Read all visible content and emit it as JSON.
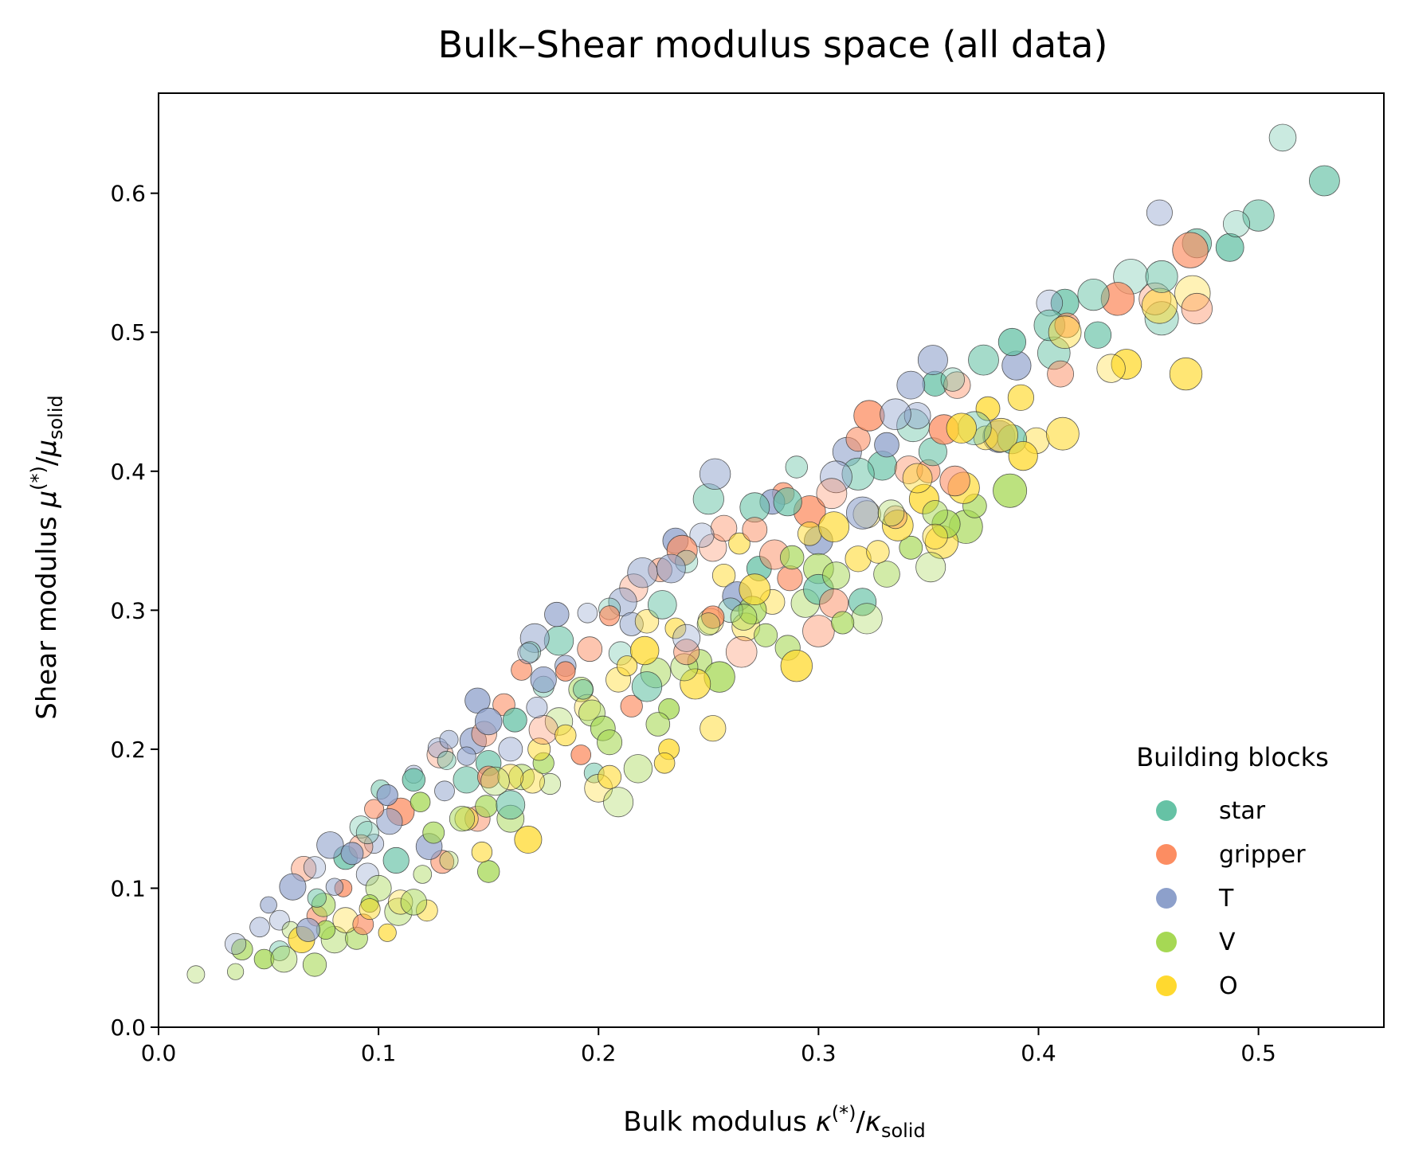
{
  "chart_data": {
    "type": "scatter",
    "title": "Bulk–Shear modulus space (all data)",
    "xlabel": {
      "prefix": "Bulk modulus ",
      "var": "κ",
      "sup": "(*)",
      "den": "κ",
      "sub": "solid"
    },
    "ylabel": {
      "prefix": "Shear modulus ",
      "var": "μ",
      "sup": "(*)",
      "den": "μ",
      "sub": "solid"
    },
    "xlim": [
      0.0,
      0.557
    ],
    "ylim": [
      0.0,
      0.672
    ],
    "xticks": [
      "0.0",
      "0.1",
      "0.2",
      "0.3",
      "0.4",
      "0.5"
    ],
    "yticks": [
      "0.0",
      "0.1",
      "0.2",
      "0.3",
      "0.4",
      "0.5",
      "0.6"
    ],
    "grid": false,
    "legend": {
      "title": "Building blocks",
      "position": "lower-right",
      "entries": [
        "star",
        "gripper",
        "T",
        "V",
        "O"
      ]
    },
    "series": [
      {
        "name": "star",
        "color": "#66c2a5",
        "points": [
          [
            0.511,
            0.64
          ],
          [
            0.53,
            0.609
          ],
          [
            0.5,
            0.584
          ],
          [
            0.49,
            0.578
          ],
          [
            0.487,
            0.561
          ],
          [
            0.472,
            0.564
          ],
          [
            0.456,
            0.54
          ],
          [
            0.456,
            0.51
          ],
          [
            0.442,
            0.54
          ],
          [
            0.427,
            0.498
          ],
          [
            0.425,
            0.527
          ],
          [
            0.412,
            0.521
          ],
          [
            0.405,
            0.505
          ],
          [
            0.407,
            0.485
          ],
          [
            0.388,
            0.493
          ],
          [
            0.388,
            0.423
          ],
          [
            0.375,
            0.48
          ],
          [
            0.371,
            0.431
          ],
          [
            0.361,
            0.466
          ],
          [
            0.353,
            0.463
          ],
          [
            0.352,
            0.414
          ],
          [
            0.343,
            0.433
          ],
          [
            0.329,
            0.404
          ],
          [
            0.318,
            0.398
          ],
          [
            0.29,
            0.403
          ],
          [
            0.286,
            0.378
          ],
          [
            0.271,
            0.374
          ],
          [
            0.25,
            0.38
          ],
          [
            0.24,
            0.335
          ],
          [
            0.273,
            0.33
          ],
          [
            0.32,
            0.306
          ],
          [
            0.229,
            0.304
          ],
          [
            0.205,
            0.301
          ],
          [
            0.182,
            0.278
          ],
          [
            0.169,
            0.27
          ],
          [
            0.21,
            0.269
          ],
          [
            0.222,
            0.245
          ],
          [
            0.193,
            0.243
          ],
          [
            0.175,
            0.245
          ],
          [
            0.162,
            0.221
          ],
          [
            0.15,
            0.19
          ],
          [
            0.14,
            0.178
          ],
          [
            0.131,
            0.192
          ],
          [
            0.116,
            0.178
          ],
          [
            0.101,
            0.171
          ],
          [
            0.095,
            0.14
          ],
          [
            0.085,
            0.122
          ],
          [
            0.072,
            0.093
          ],
          [
            0.055,
            0.055
          ],
          [
            0.092,
            0.144
          ],
          [
            0.108,
            0.12
          ],
          [
            0.16,
            0.16
          ],
          [
            0.198,
            0.183
          ],
          [
            0.26,
            0.3
          ],
          [
            0.3,
            0.315
          ]
        ]
      },
      {
        "name": "gripper",
        "color": "#fc8d62",
        "points": [
          [
            0.469,
            0.559
          ],
          [
            0.472,
            0.517
          ],
          [
            0.453,
            0.524
          ],
          [
            0.436,
            0.524
          ],
          [
            0.413,
            0.505
          ],
          [
            0.41,
            0.47
          ],
          [
            0.363,
            0.462
          ],
          [
            0.357,
            0.43
          ],
          [
            0.35,
            0.4
          ],
          [
            0.341,
            0.401
          ],
          [
            0.323,
            0.44
          ],
          [
            0.318,
            0.423
          ],
          [
            0.306,
            0.384
          ],
          [
            0.296,
            0.371
          ],
          [
            0.284,
            0.384
          ],
          [
            0.271,
            0.358
          ],
          [
            0.257,
            0.359
          ],
          [
            0.252,
            0.345
          ],
          [
            0.238,
            0.343
          ],
          [
            0.228,
            0.329
          ],
          [
            0.216,
            0.316
          ],
          [
            0.205,
            0.296
          ],
          [
            0.196,
            0.272
          ],
          [
            0.185,
            0.256
          ],
          [
            0.165,
            0.257
          ],
          [
            0.157,
            0.232
          ],
          [
            0.148,
            0.211
          ],
          [
            0.128,
            0.196
          ],
          [
            0.11,
            0.155
          ],
          [
            0.098,
            0.157
          ],
          [
            0.092,
            0.13
          ],
          [
            0.084,
            0.1
          ],
          [
            0.072,
            0.08
          ],
          [
            0.066,
            0.114
          ],
          [
            0.093,
            0.074
          ],
          [
            0.129,
            0.119
          ],
          [
            0.145,
            0.15
          ],
          [
            0.175,
            0.214
          ],
          [
            0.192,
            0.196
          ],
          [
            0.215,
            0.231
          ],
          [
            0.24,
            0.27
          ],
          [
            0.265,
            0.27
          ],
          [
            0.287,
            0.323
          ],
          [
            0.307,
            0.305
          ],
          [
            0.335,
            0.367
          ],
          [
            0.362,
            0.393
          ],
          [
            0.28,
            0.34
          ],
          [
            0.3,
            0.285
          ],
          [
            0.252,
            0.295
          ],
          [
            0.15,
            0.18
          ]
        ]
      },
      {
        "name": "T",
        "color": "#8da0cb",
        "points": [
          [
            0.455,
            0.586
          ],
          [
            0.405,
            0.521
          ],
          [
            0.39,
            0.476
          ],
          [
            0.352,
            0.48
          ],
          [
            0.342,
            0.462
          ],
          [
            0.335,
            0.441
          ],
          [
            0.331,
            0.419
          ],
          [
            0.313,
            0.414
          ],
          [
            0.308,
            0.396
          ],
          [
            0.279,
            0.378
          ],
          [
            0.253,
            0.398
          ],
          [
            0.247,
            0.354
          ],
          [
            0.235,
            0.35
          ],
          [
            0.233,
            0.33
          ],
          [
            0.22,
            0.327
          ],
          [
            0.211,
            0.306
          ],
          [
            0.195,
            0.298
          ],
          [
            0.181,
            0.297
          ],
          [
            0.171,
            0.28
          ],
          [
            0.168,
            0.269
          ],
          [
            0.175,
            0.25
          ],
          [
            0.172,
            0.23
          ],
          [
            0.145,
            0.235
          ],
          [
            0.143,
            0.206
          ],
          [
            0.132,
            0.207
          ],
          [
            0.127,
            0.201
          ],
          [
            0.116,
            0.182
          ],
          [
            0.104,
            0.167
          ],
          [
            0.105,
            0.148
          ],
          [
            0.098,
            0.132
          ],
          [
            0.088,
            0.125
          ],
          [
            0.078,
            0.131
          ],
          [
            0.071,
            0.115
          ],
          [
            0.061,
            0.101
          ],
          [
            0.05,
            0.088
          ],
          [
            0.046,
            0.072
          ],
          [
            0.035,
            0.06
          ],
          [
            0.055,
            0.077
          ],
          [
            0.068,
            0.07
          ],
          [
            0.08,
            0.101
          ],
          [
            0.095,
            0.11
          ],
          [
            0.123,
            0.13
          ],
          [
            0.13,
            0.17
          ],
          [
            0.15,
            0.22
          ],
          [
            0.185,
            0.26
          ],
          [
            0.215,
            0.29
          ],
          [
            0.24,
            0.28
          ],
          [
            0.263,
            0.31
          ],
          [
            0.3,
            0.35
          ],
          [
            0.32,
            0.37
          ],
          [
            0.345,
            0.44
          ],
          [
            0.382,
            0.425
          ],
          [
            0.14,
            0.195
          ],
          [
            0.16,
            0.2
          ]
        ]
      },
      {
        "name": "V",
        "color": "#a6d854",
        "points": [
          [
            0.387,
            0.386
          ],
          [
            0.371,
            0.375
          ],
          [
            0.367,
            0.36
          ],
          [
            0.353,
            0.37
          ],
          [
            0.351,
            0.331
          ],
          [
            0.342,
            0.345
          ],
          [
            0.331,
            0.326
          ],
          [
            0.322,
            0.294
          ],
          [
            0.311,
            0.291
          ],
          [
            0.308,
            0.325
          ],
          [
            0.294,
            0.305
          ],
          [
            0.288,
            0.338
          ],
          [
            0.286,
            0.273
          ],
          [
            0.276,
            0.282
          ],
          [
            0.266,
            0.295
          ],
          [
            0.255,
            0.252
          ],
          [
            0.246,
            0.263
          ],
          [
            0.239,
            0.259
          ],
          [
            0.232,
            0.229
          ],
          [
            0.227,
            0.218
          ],
          [
            0.218,
            0.186
          ],
          [
            0.209,
            0.162
          ],
          [
            0.205,
            0.205
          ],
          [
            0.197,
            0.226
          ],
          [
            0.192,
            0.243
          ],
          [
            0.182,
            0.22
          ],
          [
            0.175,
            0.19
          ],
          [
            0.165,
            0.18
          ],
          [
            0.153,
            0.177
          ],
          [
            0.149,
            0.159
          ],
          [
            0.138,
            0.15
          ],
          [
            0.132,
            0.12
          ],
          [
            0.119,
            0.162
          ],
          [
            0.116,
            0.09
          ],
          [
            0.109,
            0.083
          ],
          [
            0.1,
            0.1
          ],
          [
            0.096,
            0.089
          ],
          [
            0.09,
            0.064
          ],
          [
            0.08,
            0.063
          ],
          [
            0.076,
            0.07
          ],
          [
            0.071,
            0.045
          ],
          [
            0.057,
            0.049
          ],
          [
            0.048,
            0.049
          ],
          [
            0.038,
            0.056
          ],
          [
            0.035,
            0.04
          ],
          [
            0.017,
            0.038
          ],
          [
            0.06,
            0.07
          ],
          [
            0.125,
            0.14
          ],
          [
            0.16,
            0.15
          ],
          [
            0.178,
            0.175
          ],
          [
            0.202,
            0.215
          ],
          [
            0.226,
            0.255
          ],
          [
            0.25,
            0.29
          ],
          [
            0.27,
            0.3
          ],
          [
            0.3,
            0.33
          ],
          [
            0.333,
            0.37
          ],
          [
            0.358,
            0.362
          ],
          [
            0.15,
            0.112
          ],
          [
            0.075,
            0.088
          ],
          [
            0.12,
            0.11
          ]
        ]
      },
      {
        "name": "O",
        "color": "#ffd92f",
        "points": [
          [
            0.467,
            0.47
          ],
          [
            0.455,
            0.519
          ],
          [
            0.433,
            0.474
          ],
          [
            0.44,
            0.477
          ],
          [
            0.411,
            0.427
          ],
          [
            0.399,
            0.422
          ],
          [
            0.393,
            0.411
          ],
          [
            0.383,
            0.426
          ],
          [
            0.376,
            0.424
          ],
          [
            0.365,
            0.431
          ],
          [
            0.366,
            0.388
          ],
          [
            0.356,
            0.349
          ],
          [
            0.353,
            0.353
          ],
          [
            0.348,
            0.38
          ],
          [
            0.336,
            0.361
          ],
          [
            0.327,
            0.342
          ],
          [
            0.322,
            0.369
          ],
          [
            0.307,
            0.36
          ],
          [
            0.296,
            0.355
          ],
          [
            0.279,
            0.306
          ],
          [
            0.271,
            0.315
          ],
          [
            0.264,
            0.348
          ],
          [
            0.257,
            0.325
          ],
          [
            0.251,
            0.292
          ],
          [
            0.244,
            0.247
          ],
          [
            0.235,
            0.287
          ],
          [
            0.222,
            0.292
          ],
          [
            0.221,
            0.271
          ],
          [
            0.213,
            0.26
          ],
          [
            0.209,
            0.25
          ],
          [
            0.195,
            0.23
          ],
          [
            0.185,
            0.21
          ],
          [
            0.173,
            0.2
          ],
          [
            0.17,
            0.177
          ],
          [
            0.168,
            0.135
          ],
          [
            0.147,
            0.126
          ],
          [
            0.122,
            0.084
          ],
          [
            0.11,
            0.09
          ],
          [
            0.104,
            0.068
          ],
          [
            0.096,
            0.085
          ],
          [
            0.085,
            0.077
          ],
          [
            0.065,
            0.063
          ],
          [
            0.14,
            0.15
          ],
          [
            0.16,
            0.18
          ],
          [
            0.2,
            0.172
          ],
          [
            0.23,
            0.19
          ],
          [
            0.252,
            0.215
          ],
          [
            0.267,
            0.288
          ],
          [
            0.29,
            0.26
          ],
          [
            0.318,
            0.337
          ],
          [
            0.345,
            0.395
          ],
          [
            0.377,
            0.445
          ],
          [
            0.392,
            0.453
          ],
          [
            0.412,
            0.5
          ],
          [
            0.47,
            0.528
          ],
          [
            0.232,
            0.2
          ],
          [
            0.205,
            0.18
          ]
        ]
      }
    ]
  }
}
